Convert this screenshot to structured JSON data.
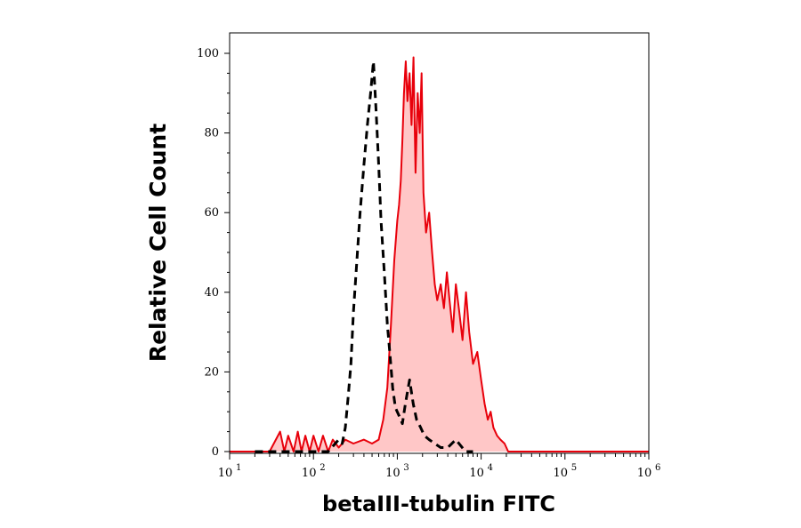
{
  "chart_data": {
    "type": "area",
    "title": "",
    "xlabel": "betaIII-tubulin FITC",
    "ylabel": "Relative Cell Count",
    "x_scale": "log",
    "xlim": [
      10,
      1000000
    ],
    "ylim": [
      0,
      100
    ],
    "grid": false,
    "x_ticks": [
      {
        "base": "10",
        "exp": "1",
        "value": 10
      },
      {
        "base": "10",
        "exp": "2",
        "value": 100
      },
      {
        "base": "10",
        "exp": "3",
        "value": 1000
      },
      {
        "base": "10",
        "exp": "4",
        "value": 10000
      },
      {
        "base": "10",
        "exp": "5",
        "value": 100000
      },
      {
        "base": "10",
        "exp": "6",
        "value": 1000000
      }
    ],
    "y_ticks": [
      "0",
      "20",
      "40",
      "60",
      "80",
      "100"
    ],
    "series": [
      {
        "role": "control",
        "color": "#000000",
        "line_style": "dashed",
        "filled": false,
        "x": [
          20,
          100,
          150,
          200,
          220,
          240,
          260,
          280,
          300,
          330,
          360,
          400,
          440,
          480,
          520,
          560,
          600,
          640,
          700,
          760,
          820,
          880,
          950,
          1050,
          1150,
          1250,
          1400,
          1550,
          1700,
          1900,
          2100,
          2400,
          2800,
          3300,
          4000,
          5000,
          6500,
          8000
        ],
        "y": [
          0,
          0,
          0,
          3,
          2,
          6,
          14,
          22,
          35,
          48,
          60,
          72,
          82,
          90,
          98,
          85,
          72,
          58,
          45,
          32,
          24,
          16,
          11,
          9,
          7,
          12,
          18,
          12,
          8,
          6,
          4,
          3,
          2,
          1,
          1,
          3,
          0,
          0
        ]
      },
      {
        "role": "stained",
        "color": "#e8000b",
        "fill": "#ffc7c7",
        "line_style": "solid",
        "filled": true,
        "x": [
          10,
          30,
          40,
          45,
          50,
          58,
          65,
          72,
          80,
          90,
          100,
          115,
          130,
          150,
          170,
          200,
          240,
          300,
          400,
          500,
          600,
          680,
          760,
          840,
          920,
          1000,
          1050,
          1100,
          1150,
          1200,
          1260,
          1320,
          1400,
          1480,
          1560,
          1650,
          1750,
          1850,
          1950,
          2050,
          2200,
          2400,
          2600,
          2800,
          3000,
          3300,
          3600,
          3900,
          4200,
          4600,
          5000,
          5500,
          6000,
          6600,
          7200,
          8000,
          9000,
          10000,
          11000,
          12000,
          13000,
          14000,
          15500,
          17000,
          19000,
          21000,
          25000,
          40000,
          1000000
        ],
        "y": [
          0,
          0,
          5,
          0,
          4,
          0,
          5,
          0,
          4,
          0,
          4,
          0,
          4,
          0,
          3,
          1,
          3,
          2,
          3,
          2,
          3,
          8,
          16,
          32,
          48,
          58,
          62,
          68,
          78,
          90,
          98,
          88,
          95,
          82,
          99,
          70,
          90,
          80,
          95,
          65,
          55,
          60,
          50,
          42,
          38,
          42,
          36,
          45,
          38,
          30,
          42,
          35,
          28,
          40,
          30,
          22,
          25,
          18,
          12,
          8,
          10,
          6,
          4,
          3,
          2,
          0,
          0,
          0,
          0
        ]
      }
    ]
  }
}
